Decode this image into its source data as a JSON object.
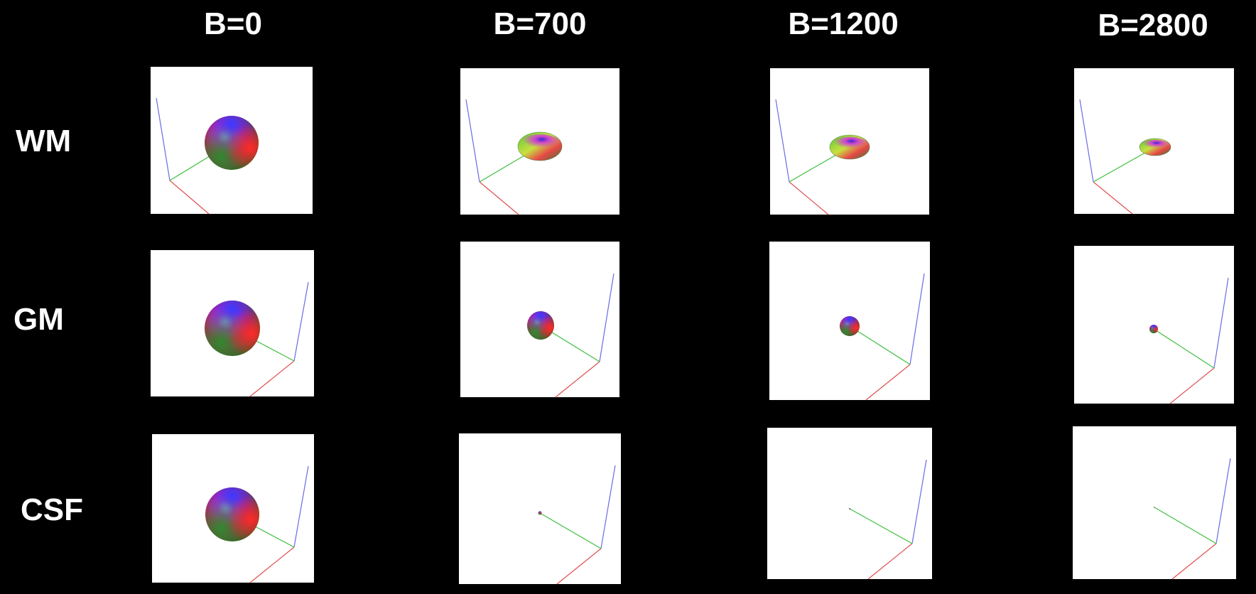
{
  "figure": {
    "columns": [
      {
        "label": "B=0"
      },
      {
        "label": "B=700"
      },
      {
        "label": "B=1200"
      },
      {
        "label": "B=2800"
      }
    ],
    "rows": [
      {
        "label": "WM"
      },
      {
        "label": "GM"
      },
      {
        "label": "CSF"
      }
    ],
    "colors": {
      "background": "#000000",
      "panel": "#ffffff",
      "label_text": "#ffffff",
      "axis_x": "#e05050",
      "axis_y": "#40c040",
      "axis_z": "#6a6ae8"
    },
    "glyph_shapes": [
      [
        "sphere",
        "disc",
        "disc",
        "disc"
      ],
      [
        "sphere",
        "sphere",
        "sphere",
        "sphere"
      ],
      [
        "sphere",
        "sphere",
        "dot",
        "dot"
      ]
    ]
  }
}
